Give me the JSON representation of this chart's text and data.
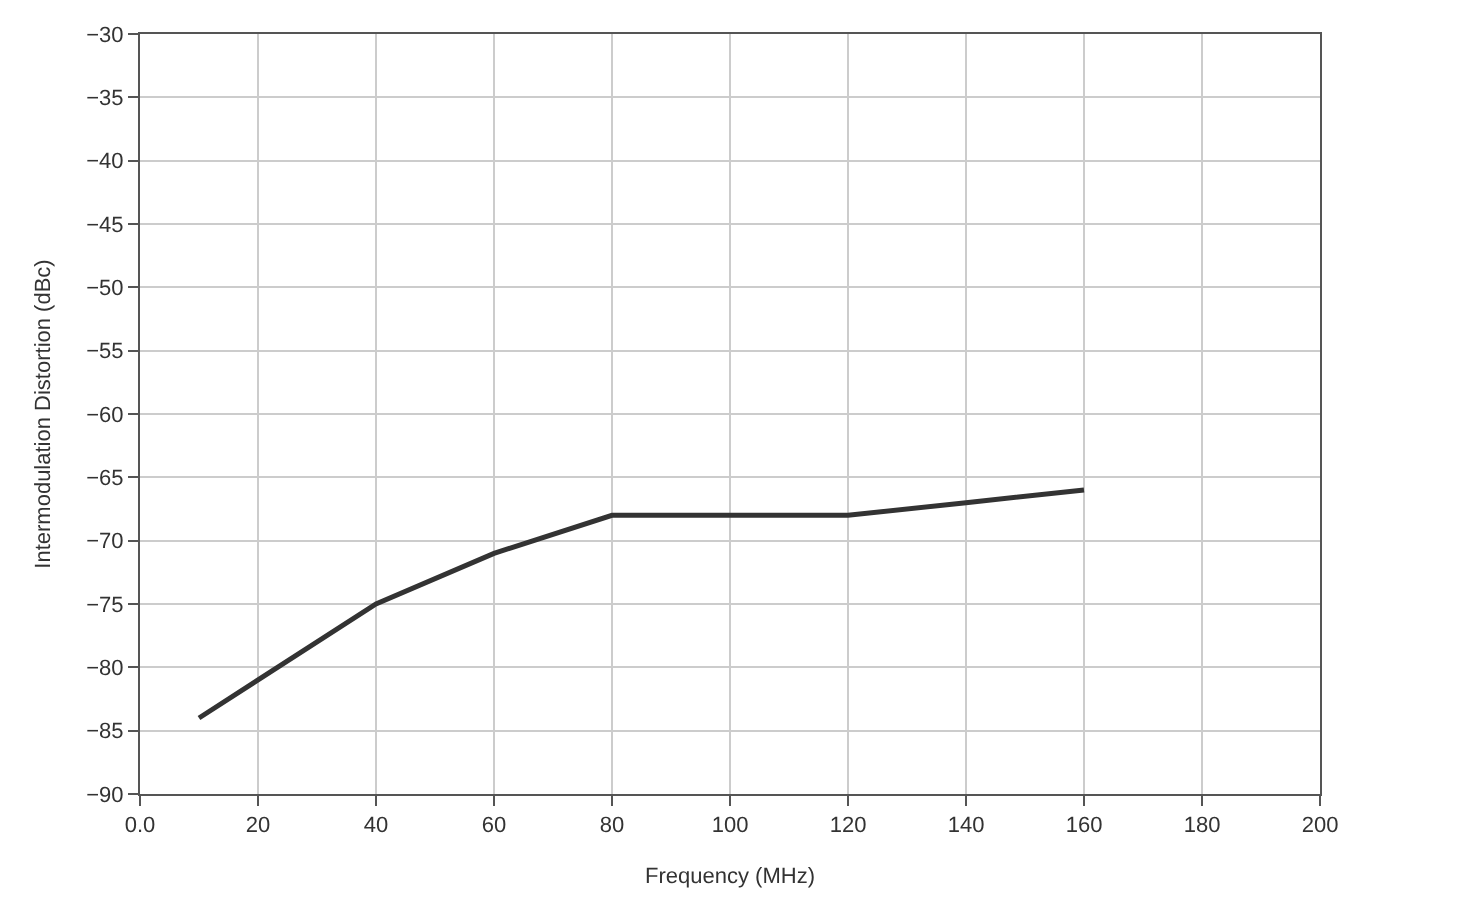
{
  "chart_data": {
    "type": "line",
    "xlabel": "Frequency (MHz)",
    "ylabel": "Intermodulation Distortion (dBc)",
    "x": [
      10,
      40,
      60,
      80,
      120,
      140,
      160
    ],
    "series": [
      {
        "color": "#333333",
        "values": [
          -84,
          -75,
          -71,
          -68,
          -68,
          -67,
          -66
        ]
      }
    ],
    "xlim": [
      0,
      200
    ],
    "xticks": [
      {
        "value": 0,
        "label": "0.0"
      },
      20,
      40,
      60,
      80,
      100,
      120,
      140,
      160,
      180,
      200
    ],
    "ylim": [
      -90,
      -30
    ],
    "yticks": [
      -90,
      -85,
      -80,
      -75,
      -70,
      -65,
      -60,
      -55,
      -50,
      -45,
      -40,
      -35,
      -30
    ],
    "grid": true,
    "marker": "none",
    "line_style": "solid"
  }
}
